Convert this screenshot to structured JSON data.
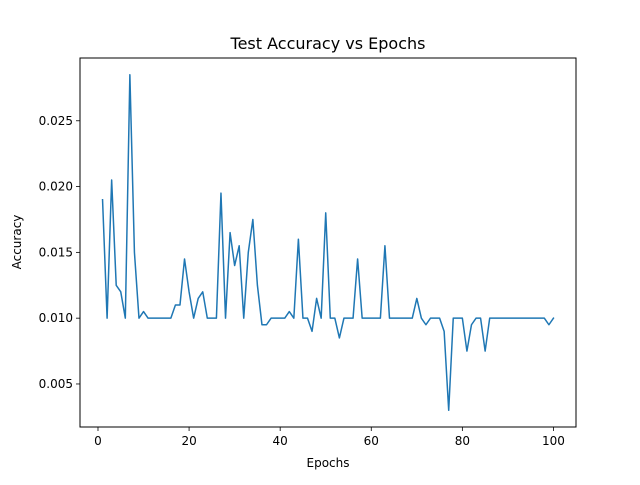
{
  "chart_data": {
    "type": "line",
    "title": "Test Accuracy vs Epochs",
    "xlabel": "Epochs",
    "ylabel": "Accuracy",
    "xlim": [
      -3.95,
      104.95
    ],
    "ylim": [
      0.00173,
      0.02977
    ],
    "xticks": [
      0,
      20,
      40,
      60,
      80,
      100
    ],
    "yticks": [
      0.005,
      0.01,
      0.015,
      0.02,
      0.025
    ],
    "ytick_labels": [
      "0.005",
      "0.010",
      "0.015",
      "0.020",
      "0.025"
    ],
    "grid": false,
    "line_color": "#1f77b4",
    "series": [
      {
        "x": [
          1,
          2,
          3,
          4,
          5,
          6,
          7,
          8,
          9,
          10,
          11,
          12,
          13,
          14,
          15,
          16,
          17,
          18,
          19,
          20,
          21,
          22,
          23,
          24,
          25,
          26,
          27,
          28,
          29,
          30,
          31,
          32,
          33,
          34,
          35,
          36,
          37,
          38,
          39,
          40,
          41,
          42,
          43,
          44,
          45,
          46,
          47,
          48,
          49,
          50,
          51,
          52,
          53,
          54,
          55,
          56,
          57,
          58,
          59,
          60,
          61,
          62,
          63,
          64,
          65,
          66,
          67,
          68,
          69,
          70,
          71,
          72,
          73,
          74,
          75,
          76,
          77,
          78,
          79,
          80,
          81,
          82,
          83,
          84,
          85,
          86,
          87,
          88,
          89,
          90,
          91,
          92,
          93,
          94,
          95,
          96,
          97,
          98,
          99,
          100
        ],
        "values": [
          0.019,
          0.01,
          0.0205,
          0.0125,
          0.012,
          0.01,
          0.0285,
          0.015,
          0.01,
          0.0105,
          0.01,
          0.01,
          0.01,
          0.01,
          0.01,
          0.01,
          0.011,
          0.011,
          0.0145,
          0.012,
          0.01,
          0.0115,
          0.012,
          0.01,
          0.01,
          0.01,
          0.0195,
          0.01,
          0.0165,
          0.014,
          0.0155,
          0.01,
          0.015,
          0.0175,
          0.0125,
          0.0095,
          0.0095,
          0.01,
          0.01,
          0.01,
          0.01,
          0.0105,
          0.01,
          0.016,
          0.01,
          0.01,
          0.009,
          0.0115,
          0.01,
          0.018,
          0.01,
          0.01,
          0.0085,
          0.01,
          0.01,
          0.01,
          0.0145,
          0.01,
          0.01,
          0.01,
          0.01,
          0.01,
          0.0155,
          0.01,
          0.01,
          0.01,
          0.01,
          0.01,
          0.01,
          0.0115,
          0.01,
          0.0095,
          0.01,
          0.01,
          0.01,
          0.009,
          0.003,
          0.01,
          0.01,
          0.01,
          0.0075,
          0.0095,
          0.01,
          0.01,
          0.0075,
          0.01,
          0.01,
          0.01,
          0.01,
          0.01,
          0.01,
          0.01,
          0.01,
          0.01,
          0.01,
          0.01,
          0.01,
          0.01,
          0.0095,
          0.01
        ]
      }
    ]
  }
}
